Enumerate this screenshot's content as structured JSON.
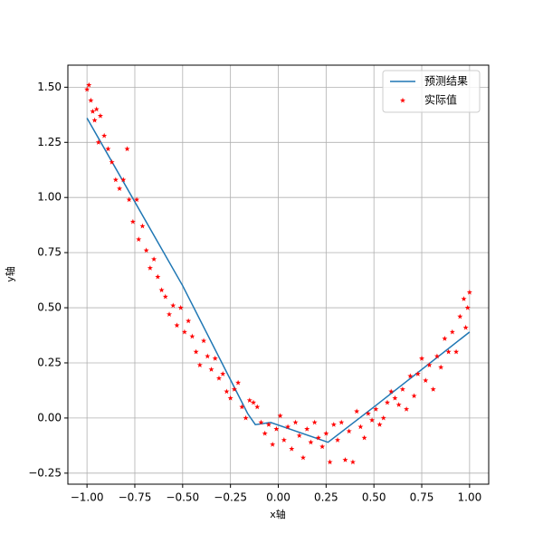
{
  "chart_data": {
    "type": "line",
    "xlabel": "x轴",
    "ylabel": "y轴",
    "xlim": [
      -1.1,
      1.1
    ],
    "ylim": [
      -0.3,
      1.6
    ],
    "xticks": [
      {
        "value": -1,
        "label": "−1.00"
      },
      {
        "value": -0.75,
        "label": "−0.75"
      },
      {
        "value": -0.5,
        "label": "−0.50"
      },
      {
        "value": -0.25,
        "label": "−0.25"
      },
      {
        "value": 0,
        "label": "0.00"
      },
      {
        "value": 0.25,
        "label": "0.25"
      },
      {
        "value": 0.5,
        "label": "0.50"
      },
      {
        "value": 0.75,
        "label": "0.75"
      },
      {
        "value": 1,
        "label": "1.00"
      }
    ],
    "yticks": [
      {
        "value": -0.25,
        "label": "−0.25"
      },
      {
        "value": 0,
        "label": "0.00"
      },
      {
        "value": 0.25,
        "label": "0.25"
      },
      {
        "value": 0.5,
        "label": "0.50"
      },
      {
        "value": 0.75,
        "label": "0.75"
      },
      {
        "value": 1,
        "label": "1.00"
      },
      {
        "value": 1.25,
        "label": "1.25"
      },
      {
        "value": 1.5,
        "label": "1.50"
      }
    ],
    "grid": true,
    "legend": "upper right",
    "series": [
      {
        "name": "预测结果",
        "type": "line",
        "color": "#1f77b4",
        "x": [
          -1,
          -0.5,
          -0.16,
          -0.12,
          -0.04,
          0.26,
          0.5,
          1
        ],
        "y": [
          1.36,
          0.6,
          0.02,
          -0.03,
          -0.02,
          -0.11,
          0.05,
          0.39
        ]
      },
      {
        "name": "实际值",
        "type": "scatter",
        "color": "#ff0000",
        "x": [
          -1.0,
          -0.99,
          -0.98,
          -0.97,
          -0.96,
          -0.95,
          -0.94,
          -0.93,
          -0.91,
          -0.89,
          -0.87,
          -0.85,
          -0.83,
          -0.81,
          -0.79,
          -0.78,
          -0.76,
          -0.74,
          -0.73,
          -0.71,
          -0.69,
          -0.67,
          -0.65,
          -0.63,
          -0.61,
          -0.59,
          -0.57,
          -0.55,
          -0.53,
          -0.51,
          -0.49,
          -0.47,
          -0.45,
          -0.43,
          -0.41,
          -0.39,
          -0.37,
          -0.35,
          -0.33,
          -0.31,
          -0.29,
          -0.27,
          -0.25,
          -0.23,
          -0.21,
          -0.19,
          -0.17,
          -0.15,
          -0.13,
          -0.11,
          -0.09,
          -0.07,
          -0.05,
          -0.03,
          -0.01,
          0.01,
          0.03,
          0.05,
          0.07,
          0.09,
          0.11,
          0.13,
          0.15,
          0.17,
          0.19,
          0.21,
          0.23,
          0.25,
          0.27,
          0.29,
          0.31,
          0.33,
          0.35,
          0.37,
          0.39,
          0.41,
          0.43,
          0.45,
          0.47,
          0.49,
          0.51,
          0.53,
          0.55,
          0.57,
          0.59,
          0.61,
          0.63,
          0.65,
          0.67,
          0.69,
          0.71,
          0.73,
          0.75,
          0.77,
          0.79,
          0.81,
          0.83,
          0.85,
          0.87,
          0.89,
          0.91,
          0.93,
          0.95,
          0.97,
          0.98,
          0.99,
          1.0
        ],
        "y": [
          1.49,
          1.51,
          1.44,
          1.39,
          1.35,
          1.4,
          1.25,
          1.37,
          1.28,
          1.22,
          1.16,
          1.08,
          1.04,
          1.08,
          1.22,
          0.99,
          0.89,
          0.99,
          0.81,
          0.87,
          0.76,
          0.68,
          0.72,
          0.64,
          0.58,
          0.55,
          0.47,
          0.51,
          0.42,
          0.5,
          0.39,
          0.44,
          0.37,
          0.3,
          0.24,
          0.35,
          0.28,
          0.22,
          0.27,
          0.18,
          0.2,
          0.12,
          0.09,
          0.13,
          0.16,
          0.05,
          0.0,
          0.08,
          0.07,
          0.05,
          -0.02,
          -0.07,
          -0.03,
          -0.12,
          -0.05,
          0.01,
          -0.1,
          -0.04,
          -0.14,
          -0.02,
          -0.08,
          -0.18,
          -0.05,
          -0.11,
          -0.02,
          -0.09,
          -0.13,
          -0.07,
          -0.2,
          -0.03,
          -0.1,
          -0.02,
          -0.19,
          -0.06,
          -0.2,
          0.03,
          -0.04,
          -0.09,
          0.02,
          -0.01,
          0.04,
          -0.03,
          0.0,
          0.07,
          0.12,
          0.09,
          0.06,
          0.13,
          0.04,
          0.19,
          0.1,
          0.2,
          0.27,
          0.17,
          0.24,
          0.13,
          0.28,
          0.23,
          0.36,
          0.3,
          0.39,
          0.3,
          0.46,
          0.54,
          0.41,
          0.5,
          0.57
        ]
      }
    ]
  }
}
